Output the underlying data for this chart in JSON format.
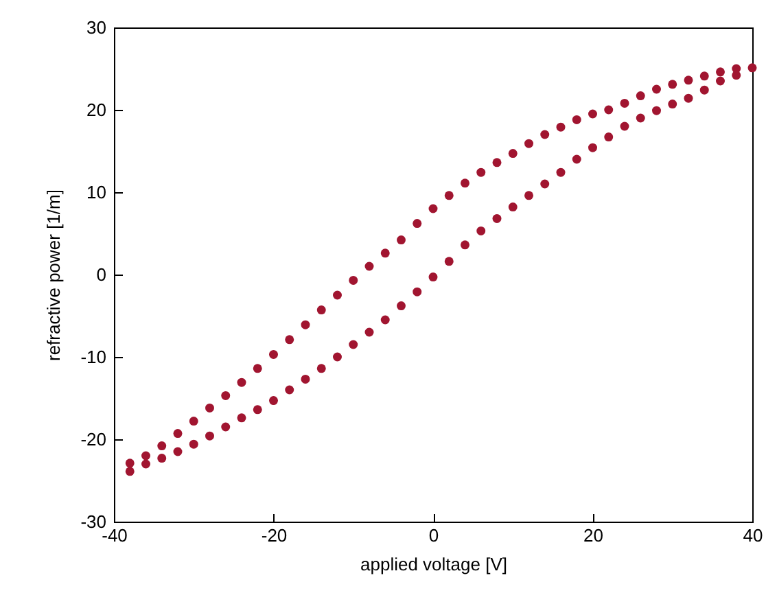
{
  "chart_data": {
    "type": "scatter",
    "xlabel": "applied voltage [V]",
    "ylabel": "refractive power [1/m]",
    "xlim": [
      -40,
      40
    ],
    "xticks": [
      -40,
      -20,
      0,
      20,
      40
    ],
    "ylim": [
      -30,
      30
    ],
    "yticks": [
      -30,
      -20,
      -10,
      0,
      10,
      20,
      30
    ],
    "marker": "circle",
    "grid": false,
    "legend": false,
    "series": [
      {
        "color": "#a11530",
        "x": [
          -38,
          -36,
          -34,
          -32,
          -30,
          -28,
          -26,
          -24,
          -22,
          -20,
          -18,
          -16,
          -14,
          -12,
          -10,
          -8,
          -6,
          -4,
          -2,
          0,
          2,
          4,
          6,
          8,
          10,
          12,
          14,
          16,
          18,
          20,
          22,
          24,
          26,
          28,
          30,
          32,
          34,
          36,
          38
        ],
        "values": [
          -23.9,
          -23,
          -22.3,
          -21.5,
          -20.6,
          -19.6,
          -18.5,
          -17.4,
          -16.4,
          -15.3,
          -14,
          -12.7,
          -11.4,
          -10,
          -8.5,
          -7,
          -5.5,
          -3.8,
          -2.1,
          -0.3,
          1.6,
          3.6,
          5.3,
          6.8,
          8.2,
          9.6,
          11,
          12.4,
          14,
          15.4,
          16.7,
          18,
          19,
          19.9,
          20.7,
          21.4,
          22.4,
          23.5,
          24.2
        ]
      },
      {
        "color": "#a11530",
        "x": [
          -38,
          -36,
          -34,
          -32,
          -30,
          -28,
          -26,
          -24,
          -22,
          -20,
          -18,
          -16,
          -14,
          -12,
          -10,
          -8,
          -6,
          -4,
          -2,
          0,
          2,
          4,
          6,
          8,
          10,
          12,
          14,
          16,
          18,
          20,
          22,
          24,
          26,
          28,
          30,
          32,
          34,
          36,
          38,
          40
        ],
        "values": [
          -22.9,
          -22,
          -20.8,
          -19.3,
          -17.8,
          -16.2,
          -14.7,
          -13.1,
          -11.4,
          -9.7,
          -7.9,
          -6.1,
          -4.3,
          -2.5,
          -0.7,
          1,
          2.6,
          4.2,
          6.2,
          8,
          9.6,
          11.1,
          12.4,
          13.6,
          14.7,
          15.9,
          17,
          17.9,
          18.8,
          19.5,
          20,
          20.8,
          21.7,
          22.5,
          23.1,
          23.6,
          24.1,
          24.6,
          25,
          25.1
        ]
      }
    ]
  }
}
